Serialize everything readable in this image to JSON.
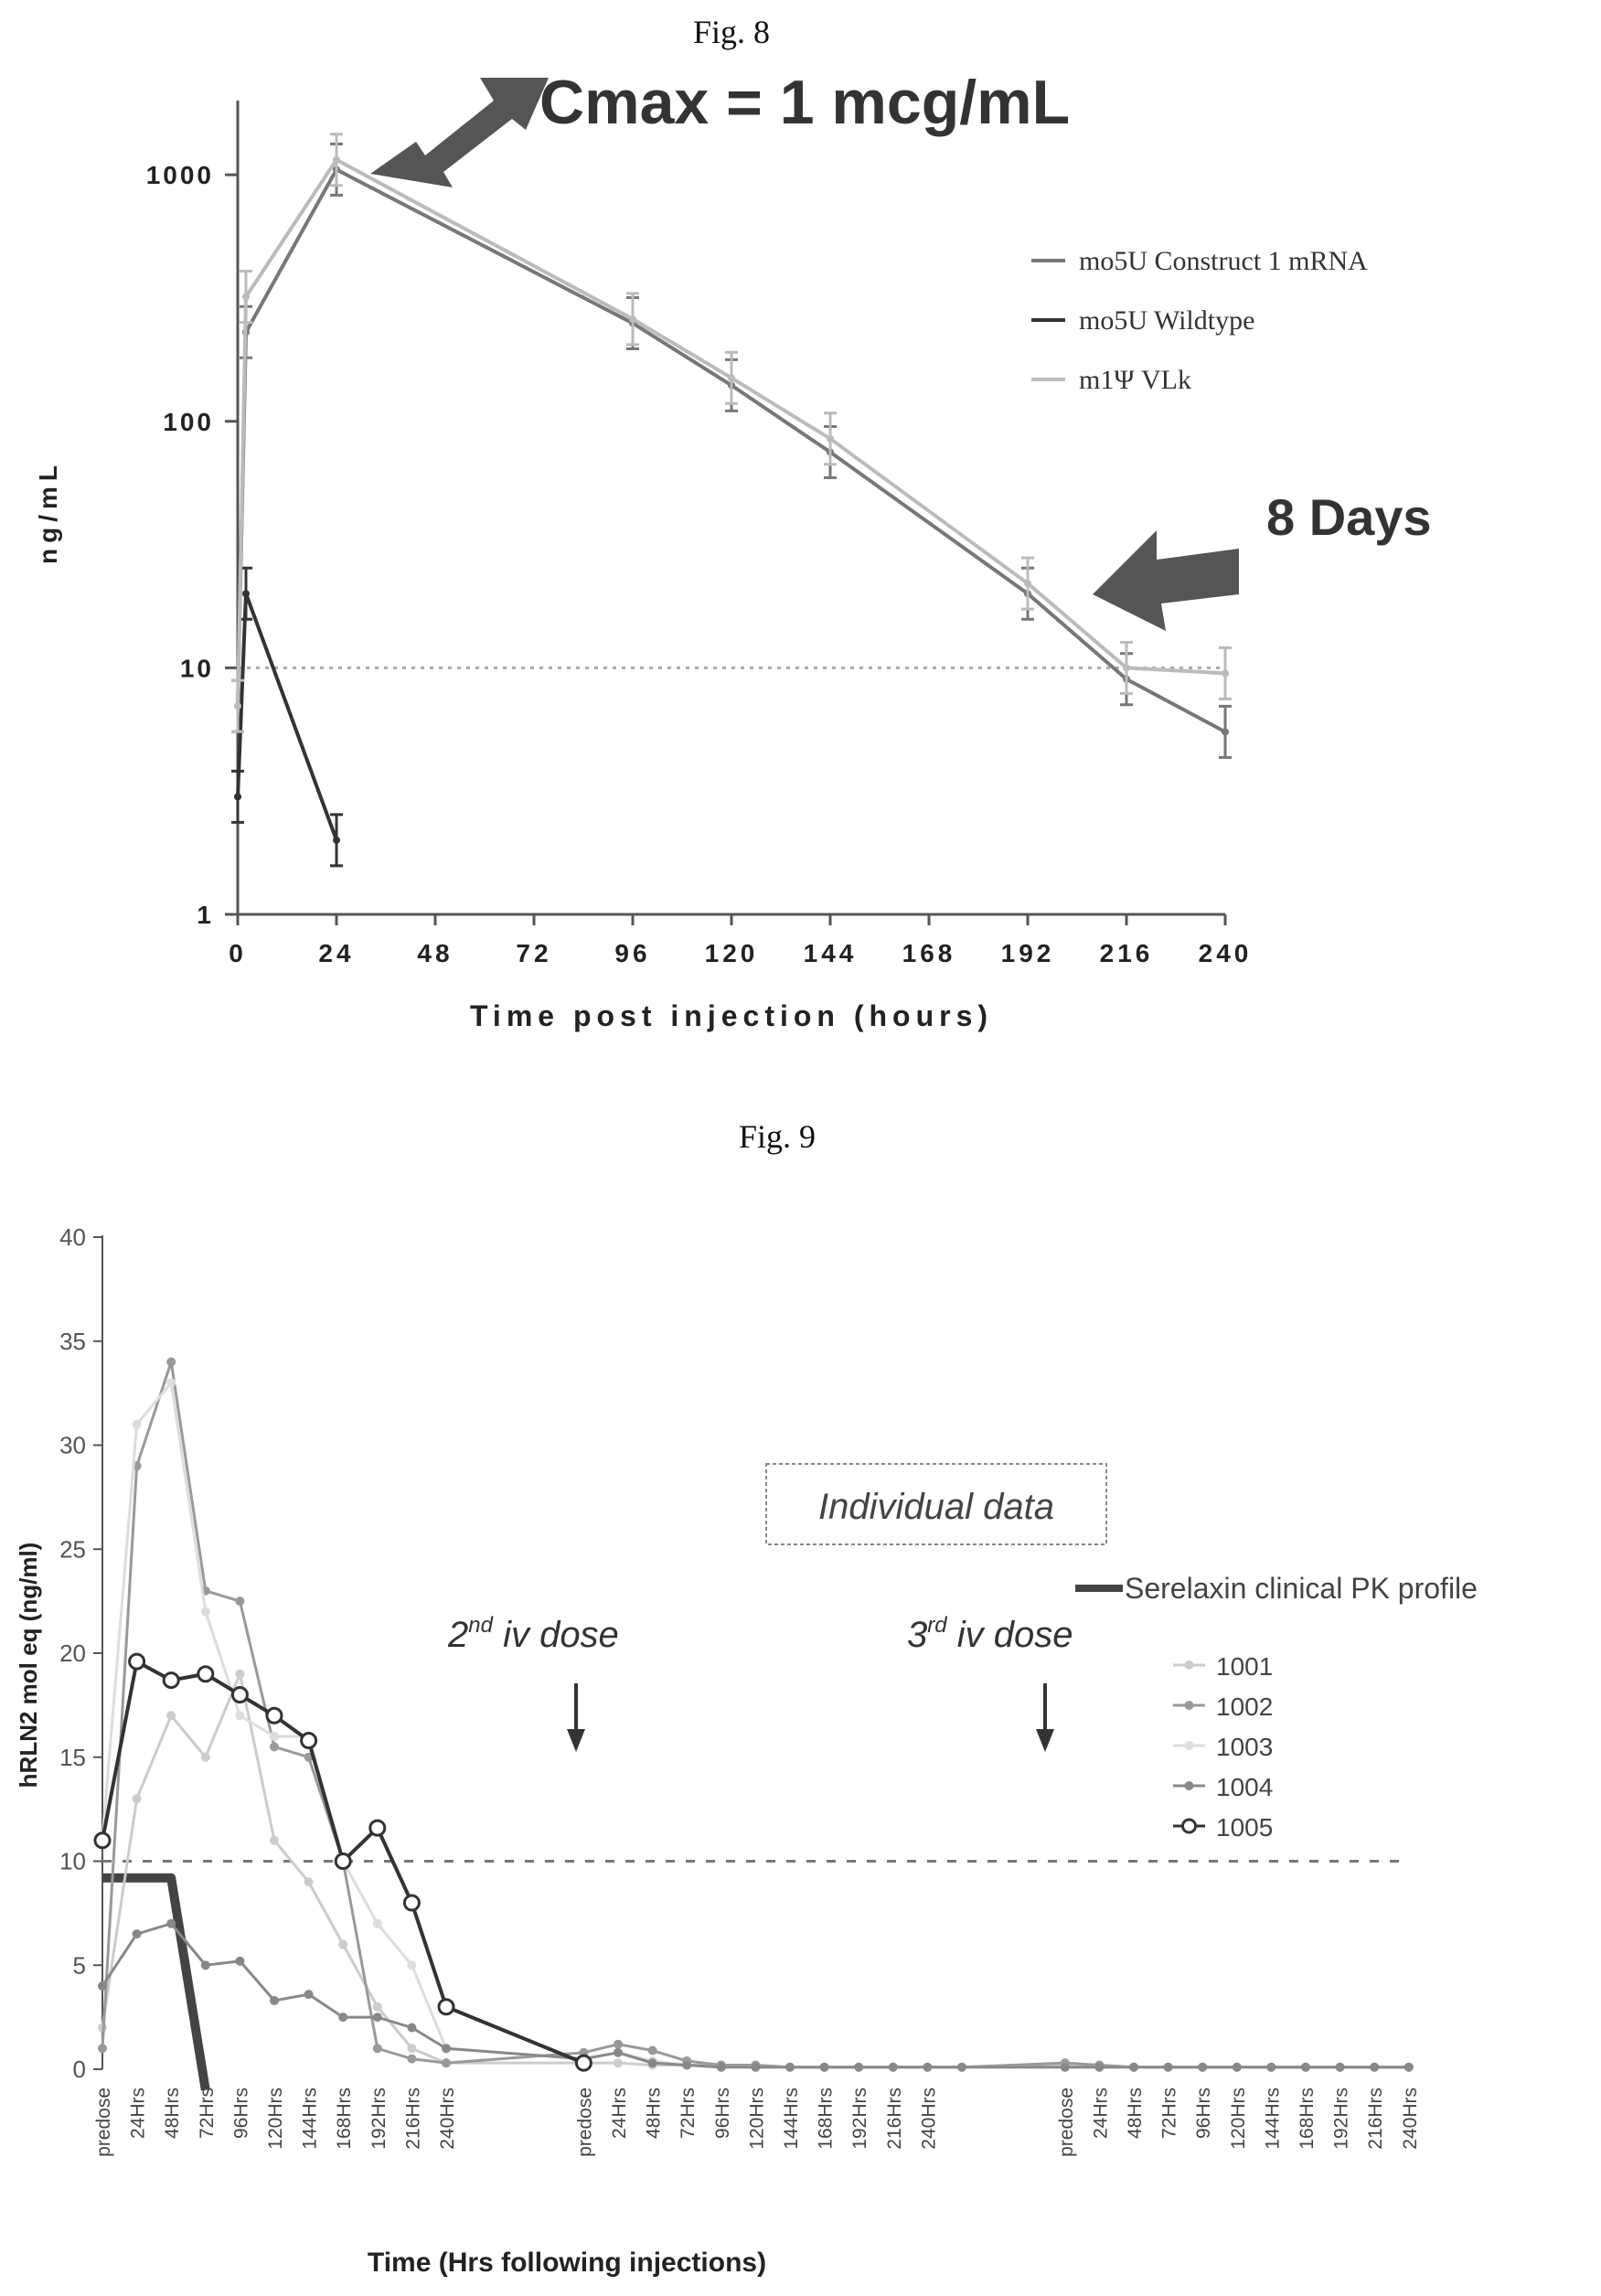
{
  "figures": {
    "fig8_label": "Fig. 8",
    "fig9_label": "Fig. 9"
  },
  "chart_data": [
    {
      "type": "line",
      "figure": "Fig. 8",
      "title": "",
      "xlabel": "Time post injection (hours)",
      "ylabel": "ng/mL",
      "yscale": "log",
      "ylim": [
        1,
        2000
      ],
      "xlim": [
        0,
        240
      ],
      "xticks": [
        0,
        24,
        48,
        72,
        96,
        120,
        144,
        168,
        192,
        216,
        240
      ],
      "yticks": [
        1,
        10,
        100,
        1000
      ],
      "ytick_labels": [
        "1",
        "10",
        "100",
        "1000"
      ],
      "legend_position": "top-right",
      "series": [
        {
          "name": "mo5U Construct 1 mRNA",
          "color": "#777777",
          "x": [
            0,
            2,
            24,
            96,
            120,
            144,
            192,
            216,
            240
          ],
          "y": [
            7,
            230,
            1050,
            250,
            140,
            75,
            20,
            9,
            5.5
          ]
        },
        {
          "name": "mo5U Wildtype",
          "color": "#333333",
          "x": [
            0,
            2,
            24
          ],
          "y": [
            3,
            20,
            2
          ]
        },
        {
          "name": "m1Ψ VLk",
          "color": "#bbbbbb",
          "x": [
            0,
            2,
            24,
            96,
            120,
            144,
            192,
            216,
            240
          ],
          "y": [
            7,
            320,
            1150,
            260,
            150,
            85,
            22,
            10,
            9.5
          ]
        }
      ],
      "reference_line": {
        "y": 10,
        "style": "dotted"
      },
      "annotations": [
        {
          "text": "Cmax = 1 mcg/mL",
          "arrow": true
        },
        {
          "text": "8 Days",
          "arrow": true
        }
      ]
    },
    {
      "type": "line",
      "figure": "Fig. 9",
      "title": "",
      "xlabel": "Time (Hrs following injections)",
      "ylabel": "hRLN2 mol eq (ng/ml)",
      "ylim": [
        0,
        40
      ],
      "yticks": [
        0,
        5,
        10,
        15,
        20,
        25,
        30,
        35,
        40
      ],
      "categories": [
        "predose",
        "24Hrs",
        "48Hrs",
        "72Hrs",
        "96Hrs",
        "120Hrs",
        "144Hrs",
        "168Hrs",
        "192Hrs",
        "216Hrs",
        "240Hrs"
      ],
      "legend_position": "right",
      "series": [
        {
          "name": "Serelaxin clinical PK profile",
          "color": "#444444",
          "points": [
            [
              0,
              9.2
            ],
            [
              1,
              9.2
            ],
            [
              2,
              9.2
            ],
            [
              3,
              -1
            ]
          ]
        },
        {
          "name": "1001",
          "color": "#cccccc",
          "points": [
            [
              0,
              2
            ],
            [
              1,
              13
            ],
            [
              2,
              17
            ],
            [
              3,
              15
            ],
            [
              4,
              19
            ],
            [
              5,
              11
            ],
            [
              6,
              9
            ],
            [
              7,
              6
            ],
            [
              8,
              3
            ],
            [
              9,
              1
            ],
            [
              10,
              0.3
            ],
            [
              14,
              0.3
            ],
            [
              15,
              0.3
            ],
            [
              16,
              0.2
            ],
            [
              17,
              0.2
            ],
            [
              18,
              0.2
            ],
            [
              19,
              0.1
            ],
            [
              20,
              0.1
            ],
            [
              21,
              0.1
            ],
            [
              22,
              0.1
            ],
            [
              23,
              0.1
            ],
            [
              24,
              0.1
            ],
            [
              25,
              0.1
            ],
            [
              28,
              0.2
            ],
            [
              29,
              0.1
            ],
            [
              30,
              0.1
            ],
            [
              31,
              0.1
            ],
            [
              32,
              0.1
            ],
            [
              33,
              0.1
            ],
            [
              34,
              0.1
            ],
            [
              35,
              0.1
            ],
            [
              36,
              0.1
            ],
            [
              37,
              0.1
            ],
            [
              38,
              0.1
            ]
          ]
        },
        {
          "name": "1002",
          "color": "#999999",
          "points": [
            [
              0,
              1
            ],
            [
              1,
              29
            ],
            [
              2,
              34
            ],
            [
              3,
              23
            ],
            [
              4,
              22.5
            ],
            [
              5,
              15.5
            ],
            [
              6,
              15
            ],
            [
              7,
              10
            ],
            [
              8,
              1
            ],
            [
              9,
              0.5
            ],
            [
              10,
              0.3
            ],
            [
              14,
              0.8
            ],
            [
              15,
              1.2
            ],
            [
              16,
              0.9
            ],
            [
              17,
              0.4
            ],
            [
              18,
              0.2
            ],
            [
              19,
              0.2
            ],
            [
              20,
              0.1
            ],
            [
              21,
              0.1
            ],
            [
              22,
              0.1
            ],
            [
              23,
              0.1
            ],
            [
              24,
              0.1
            ],
            [
              25,
              0.1
            ],
            [
              28,
              0.3
            ],
            [
              29,
              0.2
            ],
            [
              30,
              0.1
            ],
            [
              31,
              0.1
            ],
            [
              32,
              0.1
            ],
            [
              33,
              0.1
            ],
            [
              34,
              0.1
            ],
            [
              35,
              0.1
            ],
            [
              36,
              0.1
            ],
            [
              37,
              0.1
            ],
            [
              38,
              0.1
            ]
          ]
        },
        {
          "name": "1003",
          "color": "#dddddd",
          "points": [
            [
              0,
              11
            ],
            [
              1,
              31
            ],
            [
              2,
              33
            ],
            [
              3,
              22
            ],
            [
              4,
              17
            ],
            [
              5,
              16
            ],
            [
              6,
              16
            ],
            [
              7,
              10
            ],
            [
              8,
              7
            ],
            [
              9,
              5
            ],
            [
              10,
              1
            ],
            [
              14,
              0.5
            ],
            [
              15,
              0.8
            ],
            [
              16,
              0.4
            ],
            [
              17,
              0.2
            ],
            [
              18,
              0.1
            ],
            [
              19,
              0.1
            ],
            [
              20,
              0.1
            ],
            [
              21,
              0.1
            ],
            [
              22,
              0.1
            ],
            [
              23,
              0.1
            ],
            [
              24,
              0.1
            ],
            [
              25,
              0.1
            ],
            [
              28,
              0.1
            ],
            [
              29,
              0.1
            ],
            [
              30,
              0.1
            ],
            [
              31,
              0.1
            ],
            [
              32,
              0.1
            ],
            [
              33,
              0.1
            ],
            [
              34,
              0.1
            ],
            [
              35,
              0.1
            ],
            [
              36,
              0.1
            ],
            [
              37,
              0.1
            ],
            [
              38,
              0.1
            ]
          ]
        },
        {
          "name": "1004",
          "color": "#888888",
          "points": [
            [
              0,
              4
            ],
            [
              1,
              6.5
            ],
            [
              2,
              7
            ],
            [
              3,
              5
            ],
            [
              4,
              5.2
            ],
            [
              5,
              3.3
            ],
            [
              6,
              3.6
            ],
            [
              7,
              2.5
            ],
            [
              8,
              2.5
            ],
            [
              9,
              2
            ],
            [
              10,
              1
            ],
            [
              14,
              0.5
            ],
            [
              15,
              0.8
            ],
            [
              16,
              0.3
            ],
            [
              17,
              0.2
            ],
            [
              18,
              0.1
            ],
            [
              19,
              0.1
            ],
            [
              20,
              0.1
            ],
            [
              21,
              0.1
            ],
            [
              22,
              0.1
            ],
            [
              23,
              0.1
            ],
            [
              24,
              0.1
            ],
            [
              25,
              0.1
            ],
            [
              28,
              0.1
            ],
            [
              29,
              0.1
            ],
            [
              30,
              0.1
            ],
            [
              31,
              0.1
            ],
            [
              32,
              0.1
            ],
            [
              33,
              0.1
            ],
            [
              34,
              0.1
            ],
            [
              35,
              0.1
            ],
            [
              36,
              0.1
            ],
            [
              37,
              0.1
            ],
            [
              38,
              0.1
            ]
          ]
        },
        {
          "name": "1005",
          "color": "#333333",
          "points": [
            [
              0,
              11
            ],
            [
              1,
              19.6
            ],
            [
              2,
              18.7
            ],
            [
              3,
              19
            ],
            [
              4,
              18
            ],
            [
              5,
              17
            ],
            [
              6,
              15.8
            ],
            [
              7,
              10
            ],
            [
              8,
              11.6
            ],
            [
              9,
              8
            ],
            [
              10,
              3
            ],
            [
              14,
              0.3
            ]
          ]
        }
      ],
      "reference_line": {
        "y": 10,
        "style": "dashed"
      },
      "annotations": [
        {
          "text": "Individual data",
          "boxed": true
        },
        {
          "text": "2nd iv dose",
          "arrow": "down"
        },
        {
          "text": "3rd iv dose",
          "arrow": "down"
        }
      ]
    }
  ]
}
